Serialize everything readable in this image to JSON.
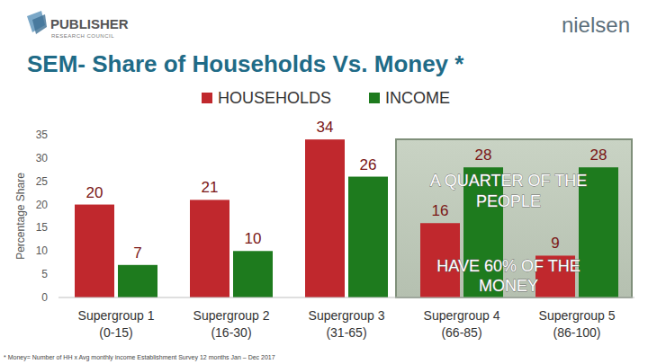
{
  "chart_data": {
    "type": "bar",
    "title": "SEM- Share of Households Vs. Money *",
    "y_label": "Percentage Share",
    "categories": [
      "Supergroup 1\n(0-15)",
      "Supergroup 2\n(16-30)",
      "Supergroup 3\n(31-65)",
      "Supergroup 4\n(66-85)",
      "Supergroup 5\n(86-100)"
    ],
    "series": [
      {
        "name": "HOUSEHOLDS",
        "color": "#c0282d",
        "values": [
          20,
          21,
          34,
          16,
          9
        ]
      },
      {
        "name": "INCOME",
        "color": "#1e7b1e",
        "values": [
          7,
          10,
          26,
          28,
          28
        ]
      }
    ],
    "ylim": [
      0,
      35
    ],
    "yticks": [
      0,
      5,
      10,
      15,
      20,
      25,
      30,
      35
    ],
    "grid": false,
    "legend": "top",
    "data_labels": true,
    "annotations": [
      "A QUARTER OF THE",
      "PEOPLE",
      "HAVE 60% OF THE",
      "MONEY"
    ],
    "footnote": "* Money= Number of HH x Avg monthly income Establishment Survey 12 months Jan – Dec 2017"
  },
  "logos": {
    "left": "PUBLISHER",
    "left_sub": "RESEARCH COUNCIL",
    "right": "nielsen"
  }
}
